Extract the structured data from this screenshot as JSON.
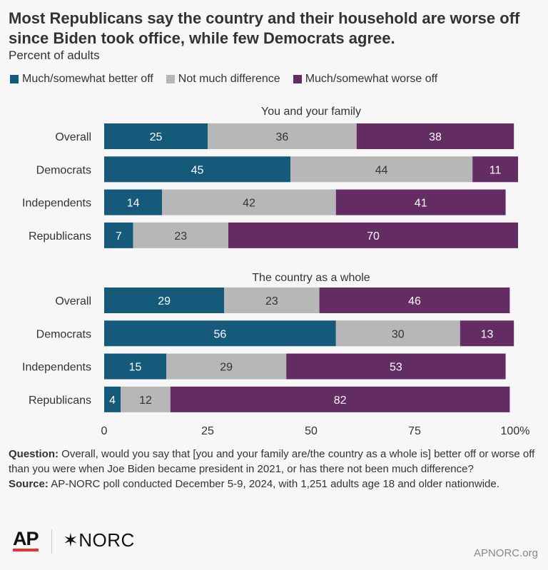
{
  "header": {
    "title": "Most Republicans say the country and their household are worse off since Biden took office, while few Democrats agree.",
    "subtitle": "Percent of adults"
  },
  "legend": [
    {
      "label": "Much/somewhat better off",
      "color": "#155a7a"
    },
    {
      "label": "Not much difference",
      "color": "#b7b7b7"
    },
    {
      "label": "Much/somewhat worse off",
      "color": "#632d63"
    }
  ],
  "chart_data": {
    "type": "bar",
    "orientation": "horizontal-stacked",
    "xlim": [
      0,
      100
    ],
    "x_ticks": [
      "0",
      "25",
      "50",
      "75",
      "100%"
    ],
    "series": [
      {
        "name": "Much/somewhat better off",
        "color": "#155a7a"
      },
      {
        "name": "Not much difference",
        "color": "#b7b7b7"
      },
      {
        "name": "Much/somewhat worse off",
        "color": "#632d63"
      }
    ],
    "panels": [
      {
        "title": "You and your family",
        "rows": [
          {
            "label": "Overall",
            "values": [
              25,
              36,
              38
            ]
          },
          {
            "label": "Democrats",
            "values": [
              45,
              44,
              11
            ]
          },
          {
            "label": "Independents",
            "values": [
              14,
              42,
              41
            ]
          },
          {
            "label": "Republicans",
            "values": [
              7,
              23,
              70
            ]
          }
        ]
      },
      {
        "title": "The country as a whole",
        "rows": [
          {
            "label": "Overall",
            "values": [
              29,
              23,
              46
            ]
          },
          {
            "label": "Democrats",
            "values": [
              56,
              30,
              13
            ]
          },
          {
            "label": "Independents",
            "values": [
              15,
              29,
              53
            ]
          },
          {
            "label": "Republicans",
            "values": [
              4,
              12,
              82
            ]
          }
        ]
      }
    ]
  },
  "footnotes": {
    "question_label": "Question:",
    "question_text": " Overall, would you say that [you and your family are/the country as a whole is] better off or worse off than you were when Joe Biden became president in 2021, or has there not been much difference?",
    "source_label": "Source:",
    "source_text": " AP-NORC poll conducted December 5-9, 2024, with 1,251 adults age 18 and older nationwide."
  },
  "branding": {
    "ap_logo": "AP",
    "norc_logo": "✶NORC",
    "site": "APNORC.org"
  }
}
